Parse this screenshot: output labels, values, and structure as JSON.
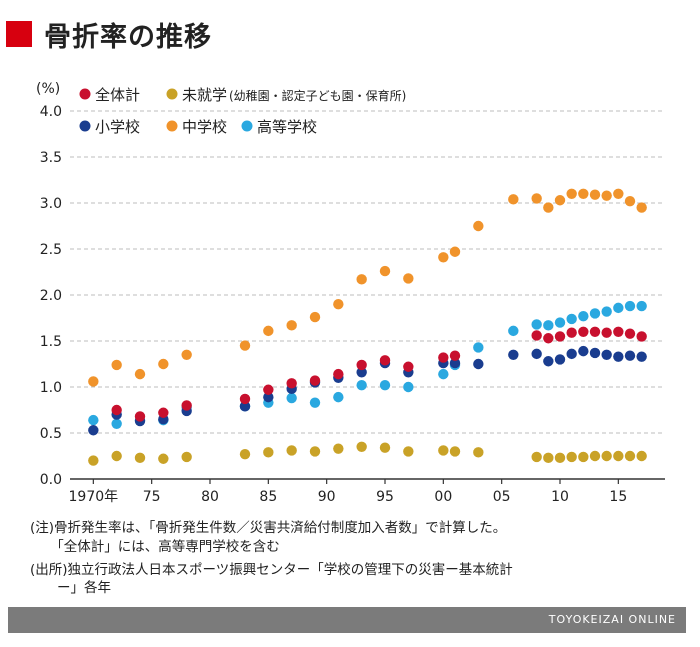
{
  "title": "骨折率の推移",
  "chart_data": {
    "type": "scatter",
    "title": "骨折率の推移",
    "ylabel": "(%)",
    "ylim": [
      0.0,
      4.0
    ],
    "yticks": [
      "0.0",
      "0.5",
      "1.0",
      "1.5",
      "2.0",
      "2.5",
      "3.0",
      "3.5",
      "4.0"
    ],
    "xlim": [
      1968,
      2019
    ],
    "xticks": [
      {
        "x": 1970,
        "label": "1970年"
      },
      {
        "x": 1975,
        "label": "75"
      },
      {
        "x": 1980,
        "label": "80"
      },
      {
        "x": 1985,
        "label": "85"
      },
      {
        "x": 1990,
        "label": "90"
      },
      {
        "x": 1995,
        "label": "95"
      },
      {
        "x": 2000,
        "label": "00"
      },
      {
        "x": 2005,
        "label": "05"
      },
      {
        "x": 2010,
        "label": "10"
      },
      {
        "x": 2015,
        "label": "15"
      }
    ],
    "grid": "horizontal dashed",
    "legend_position": "top-left",
    "series": [
      {
        "name": "全体計",
        "color": "#c8102e",
        "points": [
          [
            1972,
            0.75
          ],
          [
            1974,
            0.68
          ],
          [
            1976,
            0.72
          ],
          [
            1978,
            0.8
          ],
          [
            1983,
            0.87
          ],
          [
            1985,
            0.97
          ],
          [
            1987,
            1.04
          ],
          [
            1989,
            1.07
          ],
          [
            1991,
            1.14
          ],
          [
            1993,
            1.24
          ],
          [
            1995,
            1.29
          ],
          [
            1997,
            1.22
          ],
          [
            2000,
            1.32
          ],
          [
            2001,
            1.34
          ],
          [
            2008,
            1.56
          ],
          [
            2009,
            1.53
          ],
          [
            2010,
            1.55
          ],
          [
            2011,
            1.59
          ],
          [
            2012,
            1.6
          ],
          [
            2013,
            1.6
          ],
          [
            2014,
            1.59
          ],
          [
            2015,
            1.6
          ],
          [
            2016,
            1.58
          ],
          [
            2017,
            1.55
          ]
        ]
      },
      {
        "name": "未就学",
        "note": "(幼稚園・認定子ども園・保育所)",
        "color": "#c9a227",
        "points": [
          [
            1970,
            0.2
          ],
          [
            1972,
            0.25
          ],
          [
            1974,
            0.23
          ],
          [
            1976,
            0.22
          ],
          [
            1978,
            0.24
          ],
          [
            1983,
            0.27
          ],
          [
            1985,
            0.29
          ],
          [
            1987,
            0.31
          ],
          [
            1989,
            0.3
          ],
          [
            1991,
            0.33
          ],
          [
            1993,
            0.35
          ],
          [
            1995,
            0.34
          ],
          [
            1997,
            0.3
          ],
          [
            2000,
            0.31
          ],
          [
            2001,
            0.3
          ],
          [
            2003,
            0.29
          ],
          [
            2008,
            0.24
          ],
          [
            2009,
            0.23
          ],
          [
            2010,
            0.23
          ],
          [
            2011,
            0.24
          ],
          [
            2012,
            0.24
          ],
          [
            2013,
            0.25
          ],
          [
            2014,
            0.25
          ],
          [
            2015,
            0.25
          ],
          [
            2016,
            0.25
          ],
          [
            2017,
            0.25
          ]
        ]
      },
      {
        "name": "小学校",
        "color": "#1a3d8f",
        "points": [
          [
            1970,
            0.53
          ],
          [
            1972,
            0.7
          ],
          [
            1974,
            0.63
          ],
          [
            1976,
            0.65
          ],
          [
            1978,
            0.74
          ],
          [
            1983,
            0.79
          ],
          [
            1985,
            0.89
          ],
          [
            1987,
            0.98
          ],
          [
            1989,
            1.05
          ],
          [
            1991,
            1.1
          ],
          [
            1993,
            1.16
          ],
          [
            1995,
            1.26
          ],
          [
            1997,
            1.16
          ],
          [
            2000,
            1.26
          ],
          [
            2001,
            1.26
          ],
          [
            2003,
            1.25
          ],
          [
            2006,
            1.35
          ],
          [
            2008,
            1.36
          ],
          [
            2009,
            1.28
          ],
          [
            2010,
            1.3
          ],
          [
            2011,
            1.36
          ],
          [
            2012,
            1.39
          ],
          [
            2013,
            1.37
          ],
          [
            2014,
            1.35
          ],
          [
            2015,
            1.33
          ],
          [
            2016,
            1.34
          ],
          [
            2017,
            1.33
          ]
        ]
      },
      {
        "name": "中学校",
        "color": "#f0932b",
        "points": [
          [
            1970,
            1.06
          ],
          [
            1972,
            1.24
          ],
          [
            1974,
            1.14
          ],
          [
            1976,
            1.25
          ],
          [
            1978,
            1.35
          ],
          [
            1983,
            1.45
          ],
          [
            1985,
            1.61
          ],
          [
            1987,
            1.67
          ],
          [
            1989,
            1.76
          ],
          [
            1991,
            1.9
          ],
          [
            1993,
            2.17
          ],
          [
            1995,
            2.26
          ],
          [
            1997,
            2.18
          ],
          [
            2000,
            2.41
          ],
          [
            2001,
            2.47
          ],
          [
            2003,
            2.75
          ],
          [
            2006,
            3.04
          ],
          [
            2008,
            3.05
          ],
          [
            2009,
            2.95
          ],
          [
            2010,
            3.03
          ],
          [
            2011,
            3.1
          ],
          [
            2012,
            3.1
          ],
          [
            2013,
            3.09
          ],
          [
            2014,
            3.08
          ],
          [
            2015,
            3.1
          ],
          [
            2016,
            3.02
          ],
          [
            2017,
            2.95
          ]
        ]
      },
      {
        "name": "高等学校",
        "color": "#2aa8e0",
        "points": [
          [
            1970,
            0.64
          ],
          [
            1972,
            0.6
          ],
          [
            1974,
            0.64
          ],
          [
            1976,
            0.64
          ],
          [
            1978,
            0.78
          ],
          [
            1983,
            0.79
          ],
          [
            1985,
            0.83
          ],
          [
            1987,
            0.88
          ],
          [
            1989,
            0.83
          ],
          [
            1991,
            0.89
          ],
          [
            1993,
            1.02
          ],
          [
            1995,
            1.02
          ],
          [
            1997,
            1.0
          ],
          [
            2000,
            1.14
          ],
          [
            2001,
            1.24
          ],
          [
            2003,
            1.43
          ],
          [
            2006,
            1.61
          ],
          [
            2008,
            1.68
          ],
          [
            2009,
            1.67
          ],
          [
            2010,
            1.7
          ],
          [
            2011,
            1.74
          ],
          [
            2012,
            1.77
          ],
          [
            2013,
            1.8
          ],
          [
            2014,
            1.82
          ],
          [
            2015,
            1.86
          ],
          [
            2016,
            1.88
          ],
          [
            2017,
            1.88
          ]
        ]
      }
    ]
  },
  "notes": [
    "(注)骨折発生率は、「骨折発生件数／災害共済給付制度加入者数」で計算した。",
    "　　「全体計」には、高等専門学校を含む",
    "(出所)独立行政法人日本スポーツ振興センター「学校の管理下の災害ー基本統計",
    "　　ー」各年"
  ],
  "footer": {
    "credit": "TOYOKEIZAI ONLINE"
  }
}
